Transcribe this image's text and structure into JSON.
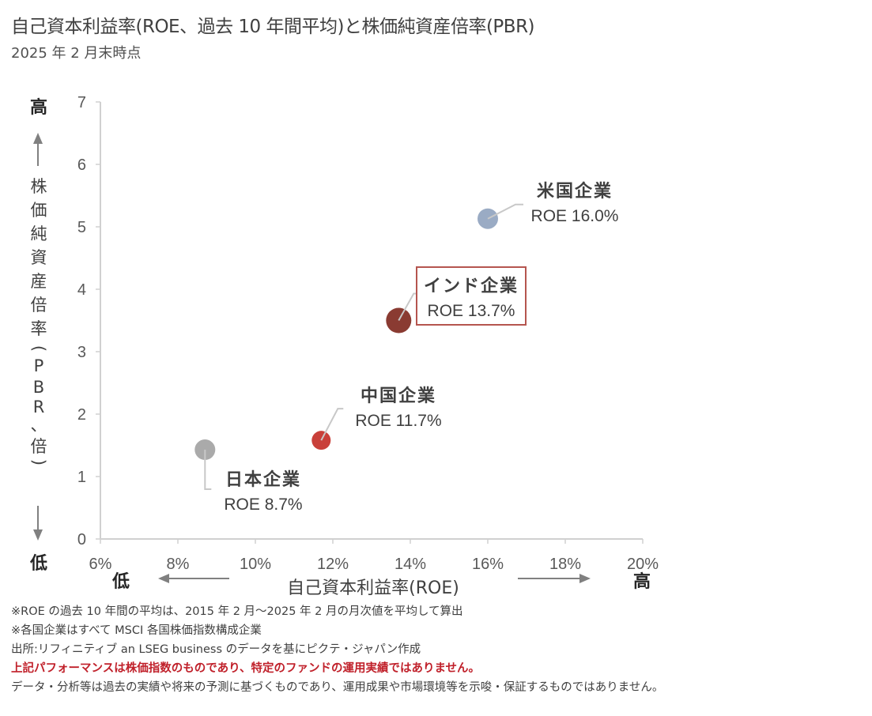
{
  "header": {
    "title": "自己資本利益率(ROE、過去 10 年間平均)と株価純資産倍率(PBR)",
    "subtitle": "2025 年 2 月末時点"
  },
  "chart_data": {
    "type": "scatter",
    "title": "自己資本利益率(ROE、過去 10 年間平均)と株価純資産倍率(PBR)",
    "subtitle": "2025 年 2 月末時点",
    "xlabel": "自己資本利益率(ROE)",
    "ylabel_chars": [
      "株",
      "価",
      "純",
      "資",
      "産",
      "倍",
      "率",
      "(",
      "P",
      "B",
      "R",
      "、",
      "倍",
      ")"
    ],
    "ylabel": "株価純資産倍率(PBR、倍)",
    "xlim": [
      6,
      20
    ],
    "ylim": [
      0,
      7
    ],
    "x_ticks": [
      6,
      8,
      10,
      12,
      14,
      16,
      18,
      20
    ],
    "x_tick_labels": [
      "6%",
      "8%",
      "10%",
      "12%",
      "14%",
      "16%",
      "18%",
      "20%"
    ],
    "y_ticks": [
      0,
      1,
      2,
      3,
      4,
      5,
      6,
      7
    ],
    "y_tick_labels": [
      "0",
      "1",
      "2",
      "3",
      "4",
      "5",
      "6",
      "7"
    ],
    "grid": false,
    "axis_direction_labels": {
      "y_high": "高",
      "y_low": "低",
      "x_low": "低",
      "x_high": "高"
    },
    "points": [
      {
        "name": "米国企業",
        "label": "ROE 16.0%",
        "x": 16.0,
        "y": 5.13,
        "color": "#9aabc4",
        "size": 13,
        "boxed": false
      },
      {
        "name": "インド企業",
        "label": "ROE 13.7%",
        "x": 13.7,
        "y": 3.5,
        "color": "#8a3b32",
        "size": 16,
        "boxed": true,
        "box_color": "#b5554f"
      },
      {
        "name": "中国企業",
        "label": "ROE 11.7%",
        "x": 11.7,
        "y": 1.58,
        "color": "#c9403a",
        "size": 12,
        "boxed": false
      },
      {
        "name": "日本企業",
        "label": "ROE 8.7%",
        "x": 8.7,
        "y": 1.43,
        "color": "#aaaaaa",
        "size": 13,
        "boxed": false
      }
    ]
  },
  "notes": [
    {
      "text": "※ROE の過去 10 年間の平均は、2015 年 2 月～2025 年 2 月の月次値を平均して算出",
      "emphasis": false
    },
    {
      "text": "※各国企業はすべて MSCI 各国株価指数構成企業",
      "emphasis": false
    },
    {
      "text": "出所:リフィニティブ an LSEG business のデータを基にピクテ・ジャパン作成",
      "emphasis": false
    },
    {
      "text": "上記パフォーマンスは株価指数のものであり、特定のファンドの運用実績ではありません。",
      "emphasis": true
    },
    {
      "text": "データ・分析等は過去の実績や将来の予測に基づくものであり、運用成果や市場環境等を示唆・保証するものではありません。",
      "emphasis": false
    }
  ],
  "colors": {
    "axis": "#d0d0d0",
    "text": "#404040",
    "arrow": "#808080",
    "leader": "#c8c8c8",
    "warning": "#c0202a"
  }
}
